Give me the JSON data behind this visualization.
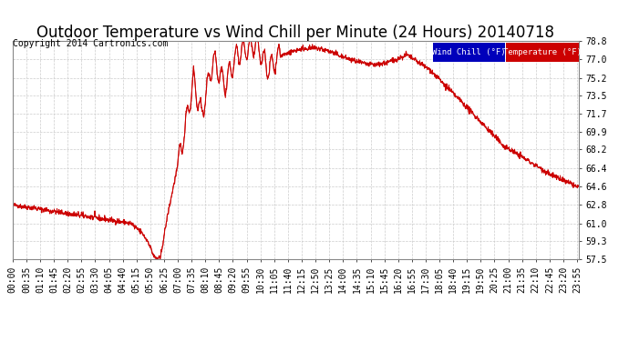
{
  "title": "Outdoor Temperature vs Wind Chill per Minute (24 Hours) 20140718",
  "copyright": "Copyright 2014 Cartronics.com",
  "ylabel_ticks": [
    57.5,
    59.3,
    61.0,
    62.8,
    64.6,
    66.4,
    68.2,
    69.9,
    71.7,
    73.5,
    75.2,
    77.0,
    78.8
  ],
  "ylim": [
    57.5,
    78.8
  ],
  "bg_color": "#ffffff",
  "plot_bg_color": "#ffffff",
  "grid_color": "#cccccc",
  "line_color": "#cc0000",
  "legend_windchill_bg": "#0000bb",
  "legend_temp_bg": "#cc0000",
  "legend_windchill_text": "Wind Chill (°F)",
  "legend_temp_text": "Temperature (°F)",
  "title_fontsize": 12,
  "copyright_fontsize": 7,
  "tick_fontsize": 7,
  "x_tick_interval_minutes": 35
}
